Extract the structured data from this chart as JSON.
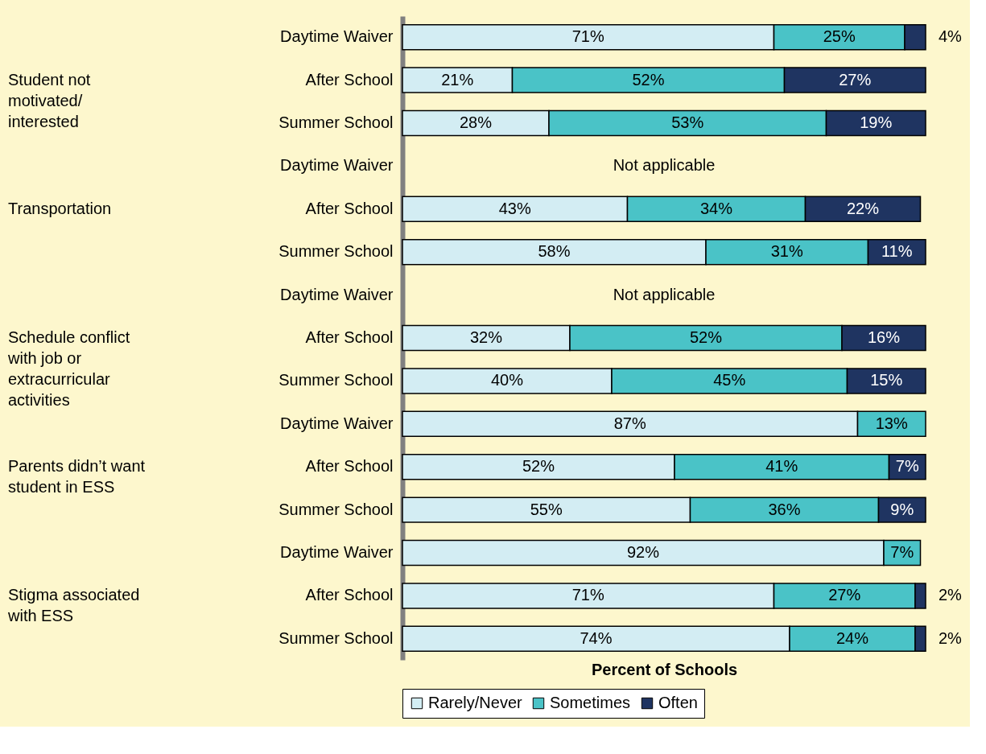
{
  "chart_data": {
    "type": "bar",
    "orientation": "horizontal",
    "stacked": true,
    "xlabel": "Percent of Schools",
    "categories": [
      "Daytime Waiver",
      "After School",
      "Summer School",
      "Daytime Waiver",
      "After School",
      "Summer School",
      "Daytime Waiver",
      "After School",
      "Summer School",
      "Daytime Waiver",
      "After School",
      "Summer School",
      "Daytime Waiver",
      "After School",
      "Summer School"
    ],
    "annotations": [
      "Student not motivated/ interested",
      "Transportation",
      "Schedule conflict with job or extracurricular activities",
      "Parents didn’t want student in ESS",
      "Stigma associated with ESS"
    ],
    "xlim": [
      0,
      100
    ],
    "tick_labels": "y",
    "legend": "bottom",
    "grid": false,
    "series": [
      {
        "name": "Rarely/Never",
        "color": "#d3edf3",
        "values": [
          71,
          21,
          28,
          null,
          43,
          58,
          null,
          32,
          40,
          87,
          52,
          55,
          92,
          71,
          74
        ],
        "value_labels": [
          "71%",
          "21%",
          "28%",
          "Not applicable",
          "43%",
          "58%",
          "Not applicable",
          "32%",
          "40%",
          "87%",
          "52%",
          "55%",
          "92%",
          "71%",
          "74%"
        ]
      },
      {
        "name": "Sometimes",
        "color": "#4ac3c7",
        "values": [
          25,
          52,
          53,
          null,
          34,
          31,
          null,
          52,
          45,
          13,
          41,
          36,
          7,
          27,
          24
        ],
        "value_labels": [
          "25%",
          "52%",
          "53%",
          null,
          "34%",
          "31%",
          null,
          "52%",
          "45%",
          "13%",
          "41%",
          "36%",
          "7%",
          "27%",
          "24%"
        ]
      },
      {
        "name": "Often",
        "color": "#1f3461",
        "values": [
          4,
          27,
          19,
          null,
          22,
          11,
          null,
          16,
          15,
          null,
          7,
          9,
          null,
          2,
          2
        ],
        "value_labels": [
          "4%",
          "27%",
          "19%",
          null,
          "22%",
          "11%",
          null,
          "16%",
          "15%",
          null,
          "7%",
          "9%",
          null,
          "2%",
          "2%"
        ]
      }
    ]
  }
}
